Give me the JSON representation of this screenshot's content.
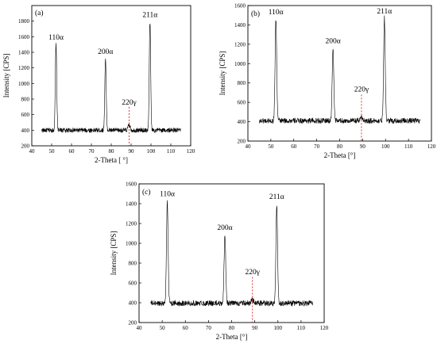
{
  "chart_data": [
    {
      "type": "line",
      "panel_label": "(a)",
      "xlabel": "2-Theta [ °]",
      "ylabel": "Intensity [CPS]",
      "xlim": [
        40,
        120
      ],
      "ylim": [
        200,
        2000
      ],
      "xticks": [
        "40",
        "50",
        "60",
        "70",
        "80",
        "90",
        "100",
        "110",
        "120"
      ],
      "yticks": [
        "200",
        "400",
        "600",
        "800",
        "1000",
        "1200",
        "1400",
        "1600",
        "1800"
      ],
      "x_range": [
        45,
        115
      ],
      "baseline": 400,
      "noise": 30,
      "peaks": [
        {
          "label": "110α",
          "x": 52.2,
          "y": 1500
        },
        {
          "label": "200α",
          "x": 77.1,
          "y": 1320
        },
        {
          "label": "220γ",
          "x": 89.0,
          "y": 470
        },
        {
          "label": "211α",
          "x": 99.5,
          "y": 1790
        }
      ],
      "marker_x": 89,
      "grid": false
    },
    {
      "type": "line",
      "panel_label": "(b)",
      "xlabel": "2-Theta [°]",
      "ylabel": "Intensity [CPS]",
      "xlim": [
        40,
        120
      ],
      "ylim": [
        200,
        1600
      ],
      "xticks": [
        "40",
        "50",
        "60",
        "70",
        "80",
        "90",
        "100",
        "110",
        "120"
      ],
      "yticks": [
        "200",
        "400",
        "600",
        "800",
        "1000",
        "1200",
        "1400",
        "1600"
      ],
      "x_range": [
        45,
        115
      ],
      "baseline": 410,
      "noise": 28,
      "peaks": [
        {
          "label": "110α",
          "x": 52.2,
          "y": 1460
        },
        {
          "label": "200α",
          "x": 77.1,
          "y": 1160
        },
        {
          "label": "220γ",
          "x": 89.5,
          "y": 450
        },
        {
          "label": "211α",
          "x": 99.5,
          "y": 1470
        }
      ],
      "marker_x": 89.5,
      "grid": false
    },
    {
      "type": "line",
      "panel_label": "(c)",
      "xlabel": "2-Theta [°]",
      "ylabel": "Intensity [CPS]",
      "xlim": [
        40,
        120
      ],
      "ylim": [
        200,
        1600
      ],
      "xticks": [
        "40",
        "50",
        "60",
        "70",
        "80",
        "90",
        "100",
        "110",
        "120"
      ],
      "yticks": [
        "200",
        "400",
        "600",
        "800",
        "1000",
        "1200",
        "1400",
        "1600"
      ],
      "x_range": [
        45,
        115
      ],
      "baseline": 395,
      "noise": 28,
      "peaks": [
        {
          "label": "110α",
          "x": 52.2,
          "y": 1430
        },
        {
          "label": "200α",
          "x": 77.1,
          "y": 1090
        },
        {
          "label": "220γ",
          "x": 89.0,
          "y": 430
        },
        {
          "label": "211α",
          "x": 99.5,
          "y": 1400
        }
      ],
      "marker_x": 89,
      "grid": false
    }
  ]
}
